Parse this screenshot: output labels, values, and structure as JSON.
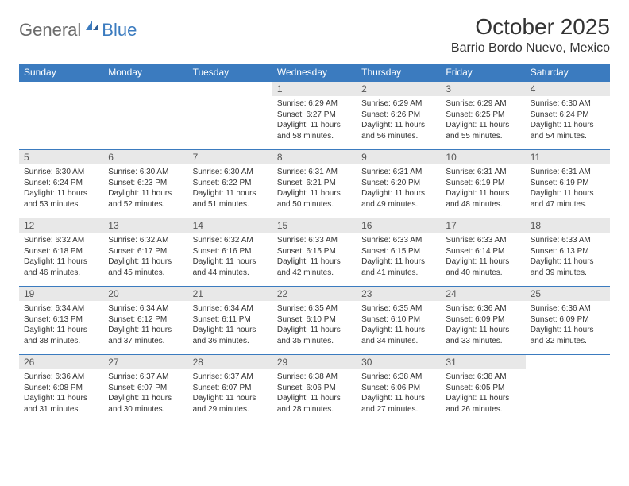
{
  "logo": {
    "general": "General",
    "blue": "Blue"
  },
  "title": "October 2025",
  "location": "Barrio Bordo Nuevo, Mexico",
  "weekdays": [
    "Sunday",
    "Monday",
    "Tuesday",
    "Wednesday",
    "Thursday",
    "Friday",
    "Saturday"
  ],
  "colors": {
    "header_bg": "#3b7bbf",
    "header_text": "#ffffff",
    "daynum_bg": "#e8e8e8",
    "border": "#3b7bbf"
  },
  "weeks": [
    [
      {
        "n": "",
        "sr": "",
        "ss": "",
        "dl": ""
      },
      {
        "n": "",
        "sr": "",
        "ss": "",
        "dl": ""
      },
      {
        "n": "",
        "sr": "",
        "ss": "",
        "dl": ""
      },
      {
        "n": "1",
        "sr": "Sunrise: 6:29 AM",
        "ss": "Sunset: 6:27 PM",
        "dl": "Daylight: 11 hours and 58 minutes."
      },
      {
        "n": "2",
        "sr": "Sunrise: 6:29 AM",
        "ss": "Sunset: 6:26 PM",
        "dl": "Daylight: 11 hours and 56 minutes."
      },
      {
        "n": "3",
        "sr": "Sunrise: 6:29 AM",
        "ss": "Sunset: 6:25 PM",
        "dl": "Daylight: 11 hours and 55 minutes."
      },
      {
        "n": "4",
        "sr": "Sunrise: 6:30 AM",
        "ss": "Sunset: 6:24 PM",
        "dl": "Daylight: 11 hours and 54 minutes."
      }
    ],
    [
      {
        "n": "5",
        "sr": "Sunrise: 6:30 AM",
        "ss": "Sunset: 6:24 PM",
        "dl": "Daylight: 11 hours and 53 minutes."
      },
      {
        "n": "6",
        "sr": "Sunrise: 6:30 AM",
        "ss": "Sunset: 6:23 PM",
        "dl": "Daylight: 11 hours and 52 minutes."
      },
      {
        "n": "7",
        "sr": "Sunrise: 6:30 AM",
        "ss": "Sunset: 6:22 PM",
        "dl": "Daylight: 11 hours and 51 minutes."
      },
      {
        "n": "8",
        "sr": "Sunrise: 6:31 AM",
        "ss": "Sunset: 6:21 PM",
        "dl": "Daylight: 11 hours and 50 minutes."
      },
      {
        "n": "9",
        "sr": "Sunrise: 6:31 AM",
        "ss": "Sunset: 6:20 PM",
        "dl": "Daylight: 11 hours and 49 minutes."
      },
      {
        "n": "10",
        "sr": "Sunrise: 6:31 AM",
        "ss": "Sunset: 6:19 PM",
        "dl": "Daylight: 11 hours and 48 minutes."
      },
      {
        "n": "11",
        "sr": "Sunrise: 6:31 AM",
        "ss": "Sunset: 6:19 PM",
        "dl": "Daylight: 11 hours and 47 minutes."
      }
    ],
    [
      {
        "n": "12",
        "sr": "Sunrise: 6:32 AM",
        "ss": "Sunset: 6:18 PM",
        "dl": "Daylight: 11 hours and 46 minutes."
      },
      {
        "n": "13",
        "sr": "Sunrise: 6:32 AM",
        "ss": "Sunset: 6:17 PM",
        "dl": "Daylight: 11 hours and 45 minutes."
      },
      {
        "n": "14",
        "sr": "Sunrise: 6:32 AM",
        "ss": "Sunset: 6:16 PM",
        "dl": "Daylight: 11 hours and 44 minutes."
      },
      {
        "n": "15",
        "sr": "Sunrise: 6:33 AM",
        "ss": "Sunset: 6:15 PM",
        "dl": "Daylight: 11 hours and 42 minutes."
      },
      {
        "n": "16",
        "sr": "Sunrise: 6:33 AM",
        "ss": "Sunset: 6:15 PM",
        "dl": "Daylight: 11 hours and 41 minutes."
      },
      {
        "n": "17",
        "sr": "Sunrise: 6:33 AM",
        "ss": "Sunset: 6:14 PM",
        "dl": "Daylight: 11 hours and 40 minutes."
      },
      {
        "n": "18",
        "sr": "Sunrise: 6:33 AM",
        "ss": "Sunset: 6:13 PM",
        "dl": "Daylight: 11 hours and 39 minutes."
      }
    ],
    [
      {
        "n": "19",
        "sr": "Sunrise: 6:34 AM",
        "ss": "Sunset: 6:13 PM",
        "dl": "Daylight: 11 hours and 38 minutes."
      },
      {
        "n": "20",
        "sr": "Sunrise: 6:34 AM",
        "ss": "Sunset: 6:12 PM",
        "dl": "Daylight: 11 hours and 37 minutes."
      },
      {
        "n": "21",
        "sr": "Sunrise: 6:34 AM",
        "ss": "Sunset: 6:11 PM",
        "dl": "Daylight: 11 hours and 36 minutes."
      },
      {
        "n": "22",
        "sr": "Sunrise: 6:35 AM",
        "ss": "Sunset: 6:10 PM",
        "dl": "Daylight: 11 hours and 35 minutes."
      },
      {
        "n": "23",
        "sr": "Sunrise: 6:35 AM",
        "ss": "Sunset: 6:10 PM",
        "dl": "Daylight: 11 hours and 34 minutes."
      },
      {
        "n": "24",
        "sr": "Sunrise: 6:36 AM",
        "ss": "Sunset: 6:09 PM",
        "dl": "Daylight: 11 hours and 33 minutes."
      },
      {
        "n": "25",
        "sr": "Sunrise: 6:36 AM",
        "ss": "Sunset: 6:09 PM",
        "dl": "Daylight: 11 hours and 32 minutes."
      }
    ],
    [
      {
        "n": "26",
        "sr": "Sunrise: 6:36 AM",
        "ss": "Sunset: 6:08 PM",
        "dl": "Daylight: 11 hours and 31 minutes."
      },
      {
        "n": "27",
        "sr": "Sunrise: 6:37 AM",
        "ss": "Sunset: 6:07 PM",
        "dl": "Daylight: 11 hours and 30 minutes."
      },
      {
        "n": "28",
        "sr": "Sunrise: 6:37 AM",
        "ss": "Sunset: 6:07 PM",
        "dl": "Daylight: 11 hours and 29 minutes."
      },
      {
        "n": "29",
        "sr": "Sunrise: 6:38 AM",
        "ss": "Sunset: 6:06 PM",
        "dl": "Daylight: 11 hours and 28 minutes."
      },
      {
        "n": "30",
        "sr": "Sunrise: 6:38 AM",
        "ss": "Sunset: 6:06 PM",
        "dl": "Daylight: 11 hours and 27 minutes."
      },
      {
        "n": "31",
        "sr": "Sunrise: 6:38 AM",
        "ss": "Sunset: 6:05 PM",
        "dl": "Daylight: 11 hours and 26 minutes."
      },
      {
        "n": "",
        "sr": "",
        "ss": "",
        "dl": ""
      }
    ]
  ]
}
